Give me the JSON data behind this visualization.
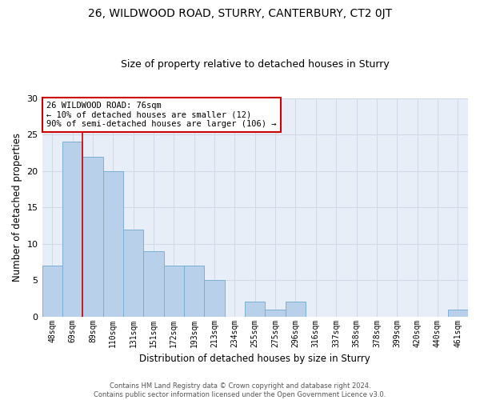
{
  "title1": "26, WILDWOOD ROAD, STURRY, CANTERBURY, CT2 0JT",
  "title2": "Size of property relative to detached houses in Sturry",
  "xlabel": "Distribution of detached houses by size in Sturry",
  "ylabel": "Number of detached properties",
  "categories": [
    "48sqm",
    "69sqm",
    "89sqm",
    "110sqm",
    "131sqm",
    "151sqm",
    "172sqm",
    "193sqm",
    "213sqm",
    "234sqm",
    "255sqm",
    "275sqm",
    "296sqm",
    "316sqm",
    "337sqm",
    "358sqm",
    "378sqm",
    "399sqm",
    "420sqm",
    "440sqm",
    "461sqm"
  ],
  "values": [
    7,
    24,
    22,
    20,
    12,
    9,
    7,
    7,
    5,
    0,
    2,
    1,
    2,
    0,
    0,
    0,
    0,
    0,
    0,
    0,
    1
  ],
  "bar_color": "#b8d0ea",
  "bar_edge_color": "#7aafd4",
  "grid_color": "#d0d8e8",
  "background_color": "#e8eef8",
  "vline_x": 1.5,
  "vline_color": "#cc0000",
  "annotation_title": "26 WILDWOOD ROAD: 76sqm",
  "annotation_line1": "← 10% of detached houses are smaller (12)",
  "annotation_line2": "90% of semi-detached houses are larger (106) →",
  "annotation_box_color": "#ffffff",
  "annotation_border_color": "#cc0000",
  "ylim": [
    0,
    30
  ],
  "yticks": [
    0,
    5,
    10,
    15,
    20,
    25,
    30
  ],
  "footer1": "Contains HM Land Registry data © Crown copyright and database right 2024.",
  "footer2": "Contains public sector information licensed under the Open Government Licence v3.0."
}
